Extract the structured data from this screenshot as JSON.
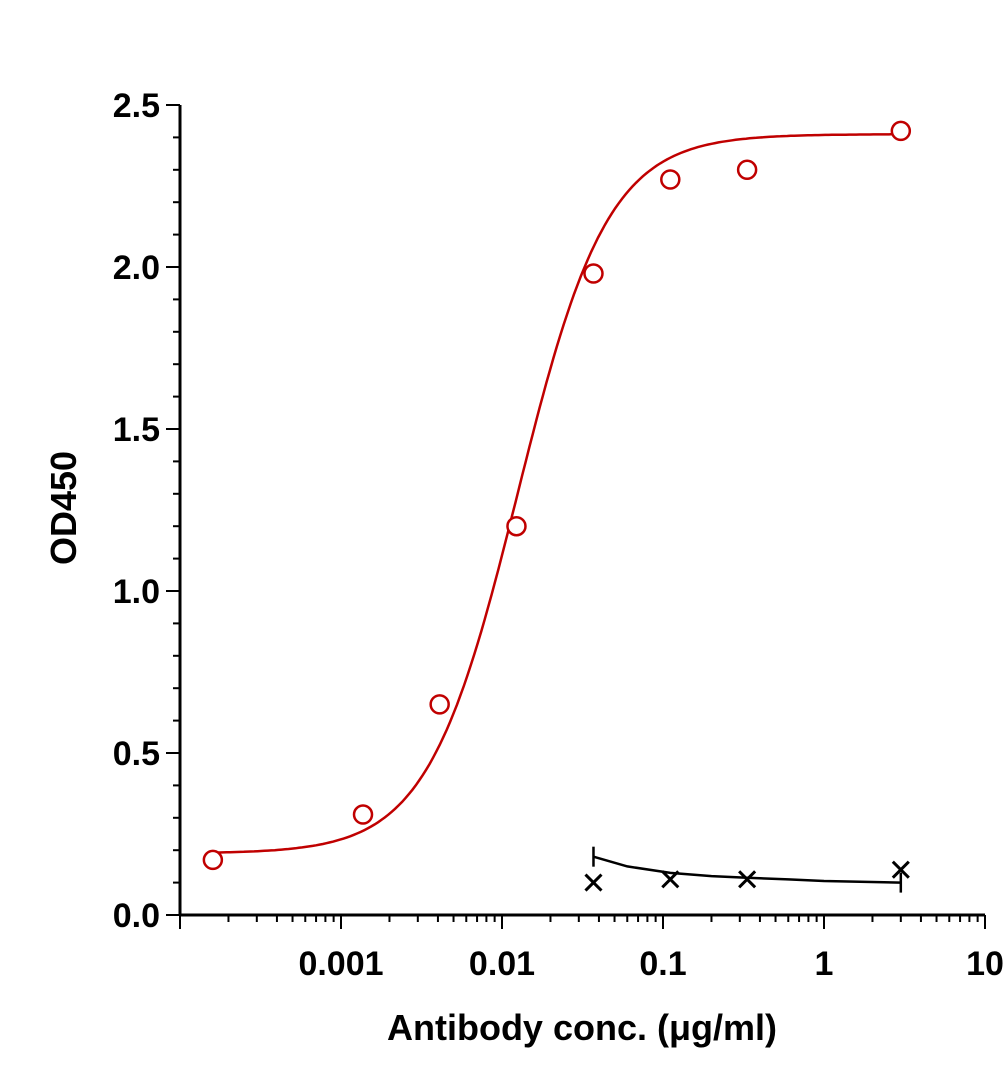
{
  "chart_data": {
    "type": "scatter",
    "xlabel": "Antibody conc. (μg/ml)",
    "ylabel": "OD450",
    "x_scale": "log",
    "xlim": [
      0.0001,
      10
    ],
    "ylim": [
      0,
      2.5
    ],
    "x_ticks": [
      {
        "value": 0.001,
        "label": "0.001"
      },
      {
        "value": 0.01,
        "label": "0.01"
      },
      {
        "value": 0.1,
        "label": "0.1"
      },
      {
        "value": 1,
        "label": "1"
      },
      {
        "value": 10,
        "label": "10"
      }
    ],
    "y_ticks": [
      {
        "value": 0,
        "label": "0.0"
      },
      {
        "value": 0.5,
        "label": "0.5"
      },
      {
        "value": 1,
        "label": "1.0"
      },
      {
        "value": 1.5,
        "label": "1.5"
      },
      {
        "value": 2,
        "label": "2.0"
      },
      {
        "value": 2.5,
        "label": "2.5"
      }
    ],
    "grid": false,
    "series": [
      {
        "marker": "circle",
        "color": "#c00000",
        "fit": "4PL",
        "fit_params": {
          "bottom": 0.19,
          "top": 2.41,
          "ec50": 0.0125,
          "hill": 1.55
        },
        "fit_range": [
          0.00016,
          3.0
        ],
        "x": [
          0.00016,
          0.00137,
          0.0041,
          0.0123,
          0.037,
          0.111,
          0.333,
          3.0
        ],
        "y": [
          0.17,
          0.31,
          0.65,
          1.2,
          1.98,
          2.27,
          2.3,
          2.42
        ]
      },
      {
        "marker": "x",
        "color": "#000000",
        "fit": "line",
        "fit_x": [
          0.037,
          0.06,
          0.111,
          0.2,
          0.333,
          0.6,
          1.0,
          3.0
        ],
        "fit_y": [
          0.18,
          0.15,
          0.13,
          0.12,
          0.115,
          0.11,
          0.105,
          0.1
        ],
        "x": [
          0.037,
          0.111,
          0.333,
          3.0
        ],
        "y": [
          0.1,
          0.11,
          0.11,
          0.14
        ]
      }
    ]
  }
}
